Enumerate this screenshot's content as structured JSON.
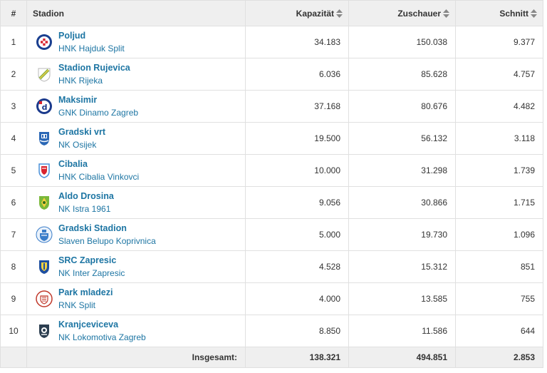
{
  "header": {
    "rank": "#",
    "stadium": "Stadion",
    "capacity": "Kapazität",
    "spectators": "Zuschauer",
    "average": "Schnitt"
  },
  "rows": [
    {
      "rank": "1",
      "stadium": "Poljud",
      "club": "HNK Hajduk Split",
      "capacity": "34.183",
      "spectators": "150.038",
      "average": "9.377",
      "crest_icon": "hajduk-crest-icon"
    },
    {
      "rank": "2",
      "stadium": "Stadion Rujevica",
      "club": "HNK Rijeka",
      "capacity": "6.036",
      "spectators": "85.628",
      "average": "4.757",
      "crest_icon": "rijeka-crest-icon"
    },
    {
      "rank": "3",
      "stadium": "Maksimir",
      "club": "GNK Dinamo Zagreb",
      "capacity": "37.168",
      "spectators": "80.676",
      "average": "4.482",
      "crest_icon": "dinamo-crest-icon"
    },
    {
      "rank": "4",
      "stadium": "Gradski vrt",
      "club": "NK Osijek",
      "capacity": "19.500",
      "spectators": "56.132",
      "average": "3.118",
      "crest_icon": "osijek-crest-icon"
    },
    {
      "rank": "5",
      "stadium": "Cibalia",
      "club": "HNK Cibalia Vinkovci",
      "capacity": "10.000",
      "spectators": "31.298",
      "average": "1.739",
      "crest_icon": "cibalia-crest-icon"
    },
    {
      "rank": "6",
      "stadium": "Aldo Drosina",
      "club": "NK Istra 1961",
      "capacity": "9.056",
      "spectators": "30.866",
      "average": "1.715",
      "crest_icon": "istra-crest-icon"
    },
    {
      "rank": "7",
      "stadium": "Gradski Stadion",
      "club": "Slaven Belupo Koprivnica",
      "capacity": "5.000",
      "spectators": "19.730",
      "average": "1.096",
      "crest_icon": "slaven-crest-icon"
    },
    {
      "rank": "8",
      "stadium": "SRC Zapresic",
      "club": "NK Inter Zapresic",
      "capacity": "4.528",
      "spectators": "15.312",
      "average": "851",
      "crest_icon": "inter-crest-icon"
    },
    {
      "rank": "9",
      "stadium": "Park mladezi",
      "club": "RNK Split",
      "capacity": "4.000",
      "spectators": "13.585",
      "average": "755",
      "crest_icon": "rnk-split-crest-icon"
    },
    {
      "rank": "10",
      "stadium": "Kranjceviceva",
      "club": "NK Lokomotiva Zagreb",
      "capacity": "8.850",
      "spectators": "11.586",
      "average": "644",
      "crest_icon": "lokomotiva-crest-icon"
    }
  ],
  "footer": {
    "label": "Insgesamt:",
    "capacity": "138.321",
    "spectators": "494.851",
    "average": "2.853"
  },
  "colors": {
    "link": "#1d75a3",
    "header_bg": "#efefef",
    "border": "#e0e0e0"
  }
}
